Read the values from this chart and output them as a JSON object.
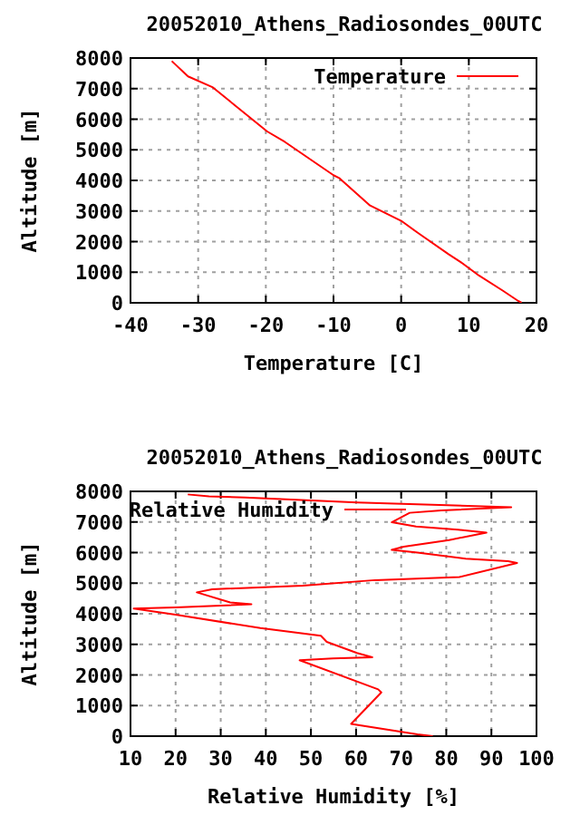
{
  "chart_data": [
    {
      "type": "line",
      "title": "20052010_Athens_Radiosondes_00UTC",
      "xlabel": "Temperature [C]",
      "ylabel": "Altitude [m]",
      "xlim": [
        -40,
        20
      ],
      "xticks": [
        -40,
        -30,
        -20,
        -10,
        0,
        10,
        20
      ],
      "ylim": [
        0,
        8000
      ],
      "yticks": [
        0,
        1000,
        2000,
        3000,
        4000,
        5000,
        6000,
        7000,
        8000
      ],
      "grid": true,
      "legend": "top right",
      "line_style": "solid",
      "marker": "none",
      "series": [
        {
          "name": "Temperature",
          "color": "#ff0000",
          "x": [
            17.8,
            17.3,
            15,
            11.5,
            8.8,
            7,
            2.5,
            0,
            -4.6,
            -9.1,
            -10,
            -17.2,
            -19.8,
            -27.9,
            -31.5,
            -33.9
          ],
          "values": [
            0,
            60,
            400,
            890,
            1330,
            1590,
            2280,
            2680,
            3180,
            4070,
            4170,
            5260,
            5600,
            7050,
            7400,
            7900
          ]
        }
      ]
    },
    {
      "type": "line",
      "title": "20052010_Athens_Radiosondes_00UTC",
      "xlabel": "Relative Humidity [%]",
      "ylabel": "Altitude [m]",
      "xlim": [
        10,
        100
      ],
      "xticks": [
        10,
        20,
        30,
        40,
        50,
        60,
        70,
        80,
        90,
        100
      ],
      "ylim": [
        0,
        8000
      ],
      "yticks": [
        0,
        1000,
        2000,
        3000,
        4000,
        5000,
        6000,
        7000,
        8000
      ],
      "grid": true,
      "legend": "top",
      "line_style": "solid",
      "marker": "none",
      "series": [
        {
          "name": "Relative Humidity",
          "color": "#ff0000",
          "x": [
            77,
            73.6,
            58.9,
            65.6,
            64.9,
            47.5,
            54.9,
            63.6,
            60.2,
            53.5,
            52.2,
            38.8,
            20,
            10.7,
            20,
            36.8,
            32.1,
            24.7,
            28.1,
            48.2,
            64.2,
            82.9,
            95.7,
            93.7,
            84.3,
            73.6,
            67.9,
            70.6,
            80.6,
            88.9,
            82.6,
            73.3,
            67.9,
            71.9,
            78.9,
            94.4,
            60.2,
            35.4,
            27.4,
            22.7
          ],
          "values": [
            0,
            60,
            400,
            1430,
            1530,
            2480,
            2540,
            2580,
            2720,
            3080,
            3280,
            3530,
            3970,
            4170,
            4210,
            4310,
            4370,
            4700,
            4800,
            4920,
            5100,
            5200,
            5660,
            5720,
            5800,
            6000,
            6090,
            6190,
            6410,
            6650,
            6750,
            6850,
            6990,
            7300,
            7380,
            7480,
            7640,
            7800,
            7840,
            7900
          ]
        }
      ]
    }
  ]
}
